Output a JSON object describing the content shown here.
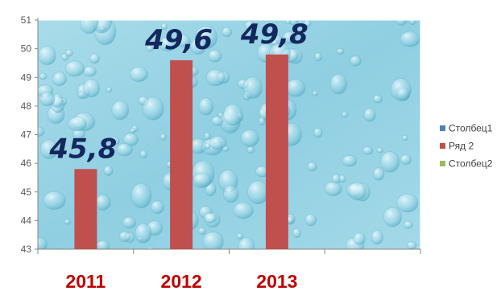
{
  "chart_data": {
    "type": "bar",
    "categories": [
      "2011",
      "2012",
      "2013",
      ""
    ],
    "series": [
      {
        "name": "Столбец1",
        "values": [
          null,
          null,
          null,
          null
        ],
        "color": "#4f81bd"
      },
      {
        "name": "Ряд 2",
        "values": [
          45.8,
          49.6,
          49.8,
          null
        ],
        "color": "#c0504d"
      },
      {
        "name": "Столбец2",
        "values": [
          null,
          null,
          null,
          null
        ],
        "color": "#9bbb59"
      }
    ],
    "data_labels": [
      "45,8",
      "49,6",
      "49,8",
      null
    ],
    "y_ticks": [
      "43",
      "44",
      "45",
      "46",
      "47",
      "48",
      "49",
      "50",
      "51"
    ],
    "ylim": [
      43,
      51
    ],
    "title": "",
    "xlabel": "",
    "ylabel": "",
    "legend_position": "right",
    "grid": false,
    "plot_background": "water-droplets",
    "plot_background_color": "#9fd8e6",
    "category_label_color": "#c00000",
    "data_label_color": "#14275f"
  }
}
